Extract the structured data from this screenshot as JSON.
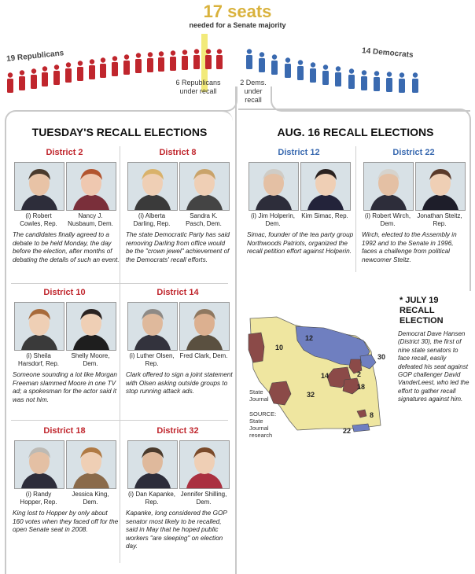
{
  "header": {
    "seats_title": "17 seats",
    "seats_sub": "needed for a Senate majority",
    "republicans_label": "19 Republicans",
    "democrats_label": "14 Democrats",
    "rep_under_recall": "6 Republicans under recall",
    "dem_under_recall": "2 Dems. under recall",
    "rep_color": "#c0262d",
    "dem_color": "#3a6ab0"
  },
  "tuesday": {
    "title": "TUESDAY'S RECALL ELECTIONS",
    "districts": [
      {
        "label": "District 2",
        "c1": "(i) Robert Cowles, Rep.",
        "c2": "Nancy J. Nusbaum, Dem.",
        "text": "The candidates finally agreed to a debate to be held Monday, the day before the election, after months of debating the details of such an event."
      },
      {
        "label": "District 8",
        "c1": "(i) Alberta Darling, Rep.",
        "c2": "Sandra K. Pasch, Dem.",
        "text": "The state Democratic Party has said removing Darling from office would be the \"crown jewel\" achievement of the Democrats' recall efforts."
      },
      {
        "label": "District 10",
        "c1": "(i) Sheila Harsdorf, Rep.",
        "c2": "Shelly Moore, Dem.",
        "text": "Someone sounding a lot like Morgan Freeman slammed Moore in one TV ad; a spokesman for the actor said it was not him."
      },
      {
        "label": "District 14",
        "c1": "(i) Luther Olsen, Rep.",
        "c2": "Fred Clark, Dem.",
        "text": "Clark offered to sign a joint statement with Olsen asking outside groups to stop running attack ads."
      },
      {
        "label": "District 18",
        "c1": "(i) Randy Hopper, Rep.",
        "c2": "Jessica King, Dem.",
        "text": "King lost to Hopper by only about 160 votes when they faced off for the open Senate seat in 2008."
      },
      {
        "label": "District 32",
        "c1": "(i) Dan Kapanke, Rep.",
        "c2": "Jennifer Shilling, Dem.",
        "text": "Kapanke, long considered the GOP senator most likely to be recalled, said in May that he hoped public workers \"are sleeping\" on election day."
      }
    ]
  },
  "aug": {
    "title": "AUG. 16 RECALL ELECTIONS",
    "districts": [
      {
        "label": "District 12",
        "c1": "(i) Jim Holperin, Dem.",
        "c2": "Kim Simac, Rep.",
        "text": "Simac, founder of the tea party group Northwoods Patriots, organized the recall petition effort against Holperin."
      },
      {
        "label": "District 22",
        "c1": "(i) Robert Wirch, Dem.",
        "c2": "Jonathan Steitz, Rep.",
        "text": "Wirch, elected to the Assembly in 1992 and to the Senate in 1996, faces a challenge from political newcomer Steitz."
      }
    ]
  },
  "july": {
    "title": "* JULY 19 RECALL ELECTION",
    "text": "Democrat Dave Hansen (District 30), the first of nine state senators to face recall, easily defeated his seat against GOP challenger David VanderLeest, who led the effort to gather recall signatures against him."
  },
  "map": {
    "credit": "State Journal",
    "source": "SOURCE: State Journal research",
    "labels": [
      "10",
      "12",
      "30",
      "14",
      "2",
      "18",
      "32",
      "8",
      "22"
    ],
    "fill_color": "#efe6a0",
    "rep_color": "#8b4a48",
    "dem_color": "#6f7fc0"
  }
}
